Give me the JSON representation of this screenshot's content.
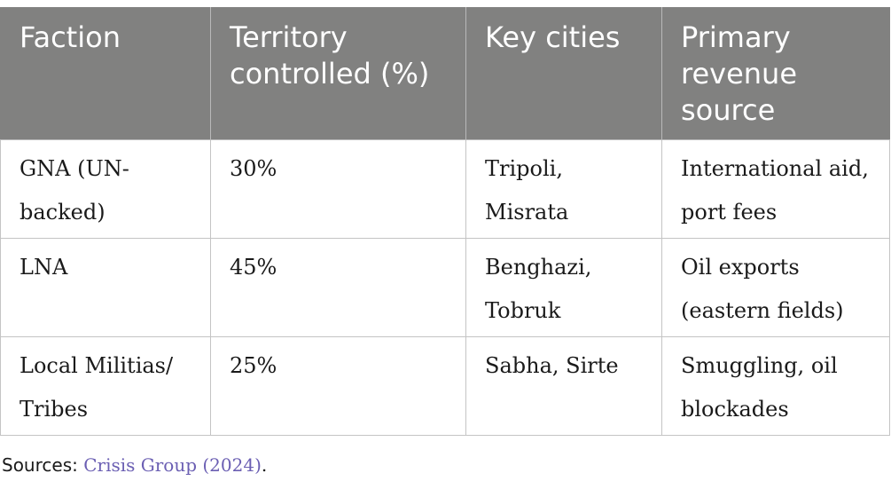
{
  "table": {
    "headers": [
      "Faction",
      "Territory controlled (%)",
      "Key cities",
      "Primary revenue source"
    ],
    "rows": [
      [
        "GNA (UN-backed)",
        "30%",
        "Tripoli, Misrata",
        "International aid, port fees"
      ],
      [
        "LNA",
        "45%",
        "Benghazi, Tobruk",
        "Oil exports (eastern fields)"
      ],
      [
        "Local Militias/ Tribes",
        "25%",
        "Sabha, Sirte",
        "Smuggling, oil blockades"
      ]
    ]
  },
  "sources": {
    "label": "Sources: ",
    "citation": "Crisis Group (2024)",
    "end": "."
  }
}
